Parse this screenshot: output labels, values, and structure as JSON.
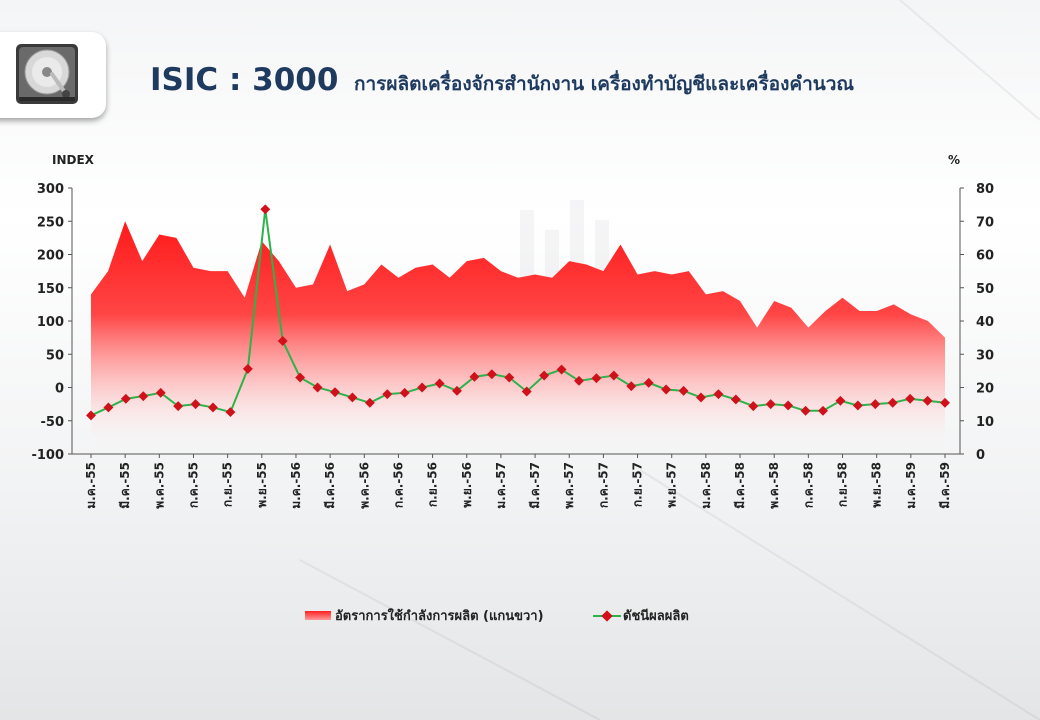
{
  "title": {
    "code": "ISIC : 3000",
    "description": "การผลิตเครื่องจักรสำนักงาน  เครื่องทำบัญชีและเครื่องคำนวณ"
  },
  "chart_data": {
    "type": "line",
    "left_axis_label": "INDEX",
    "right_axis_label": "%",
    "left_ylim": [
      -100,
      300
    ],
    "left_ticks": [
      300,
      250,
      200,
      150,
      100,
      50,
      0,
      -50,
      -100
    ],
    "right_ylim": [
      0,
      80
    ],
    "right_ticks": [
      80,
      70,
      60,
      50,
      40,
      30,
      20,
      10,
      0
    ],
    "x_tick_labels": [
      "ม.ค.-55",
      "มี.ค.-55",
      "พ.ค.-55",
      "ก.ค.-55",
      "ก.ย.-55",
      "พ.ย.-55",
      "ม.ค.-56",
      "มี.ค.-56",
      "พ.ค.-56",
      "ก.ค.-56",
      "ก.ย.-56",
      "พ.ย.-56",
      "ม.ค.-57",
      "มี.ค.-57",
      "พ.ค.-57",
      "ก.ค.-57",
      "ก.ย.-57",
      "พ.ย.-57",
      "ม.ค.-58",
      "มี.ค.-58",
      "พ.ค.-58",
      "ก.ค.-58",
      "ก.ย.-58",
      "พ.ย.-58",
      "ม.ค.-59",
      "มี.ค.-59"
    ],
    "series": [
      {
        "name": "อัตราการใช้กำลังการผลิต (แกนขวา)",
        "type": "area",
        "axis": "right",
        "color": "#ff2020",
        "values": [
          48,
          55,
          70,
          58,
          66,
          65,
          56,
          55,
          55,
          47,
          64,
          58,
          50,
          51,
          63,
          49,
          51,
          57,
          53,
          56,
          57,
          53,
          58,
          59,
          55,
          53,
          54,
          53,
          58,
          57,
          55,
          63,
          54,
          55,
          54,
          55,
          48,
          49,
          46,
          38,
          46,
          44,
          38,
          43,
          47,
          43,
          43,
          45,
          42,
          40,
          35
        ]
      },
      {
        "name": "ดัชนีผลผลิต",
        "type": "line",
        "axis": "left",
        "color": "#2db34a",
        "marker_color": "#d0101a",
        "values": [
          -42,
          -30,
          -17,
          -13,
          -8,
          -28,
          -25,
          -30,
          -37,
          28,
          268,
          70,
          15,
          0,
          -7,
          -15,
          -23,
          -10,
          -8,
          0,
          6,
          -5,
          16,
          20,
          15,
          -6,
          18,
          27,
          10,
          14,
          18,
          2,
          7,
          -3,
          -5,
          -15,
          -10,
          -18,
          -28,
          -25,
          -27,
          -35,
          -35,
          -20,
          -27,
          -25,
          -23,
          -17,
          -20,
          -23
        ]
      }
    ]
  }
}
